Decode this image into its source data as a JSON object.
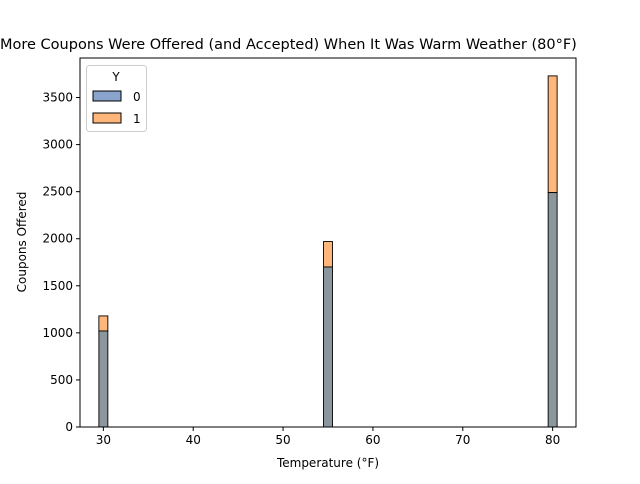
{
  "chart_data": {
    "type": "bar",
    "title": "More Coupons Were Offered (and Accepted) When It Was Warm Weather (80°F)",
    "xlabel": "Temperature (°F)",
    "ylabel": "Coupons Offered",
    "xlim": [
      27.4,
      82.6
    ],
    "ylim": [
      0,
      3920
    ],
    "x_ticks": [
      30,
      40,
      50,
      60,
      70,
      80
    ],
    "y_ticks": [
      0,
      500,
      1000,
      1500,
      2000,
      2500,
      3000,
      3500
    ],
    "stacked": true,
    "bar_width": 1,
    "categories": [
      30,
      55,
      80
    ],
    "series": [
      {
        "name": "0",
        "values": [
          1020,
          1700,
          2490
        ],
        "color": "#4c72b0"
      },
      {
        "name": "1",
        "values": [
          160,
          270,
          1240
        ],
        "color": "#ff9d4d"
      }
    ],
    "overlap_color": "#8b979c",
    "legend": {
      "title": "Y",
      "placement": "top-left"
    },
    "grid": false
  }
}
